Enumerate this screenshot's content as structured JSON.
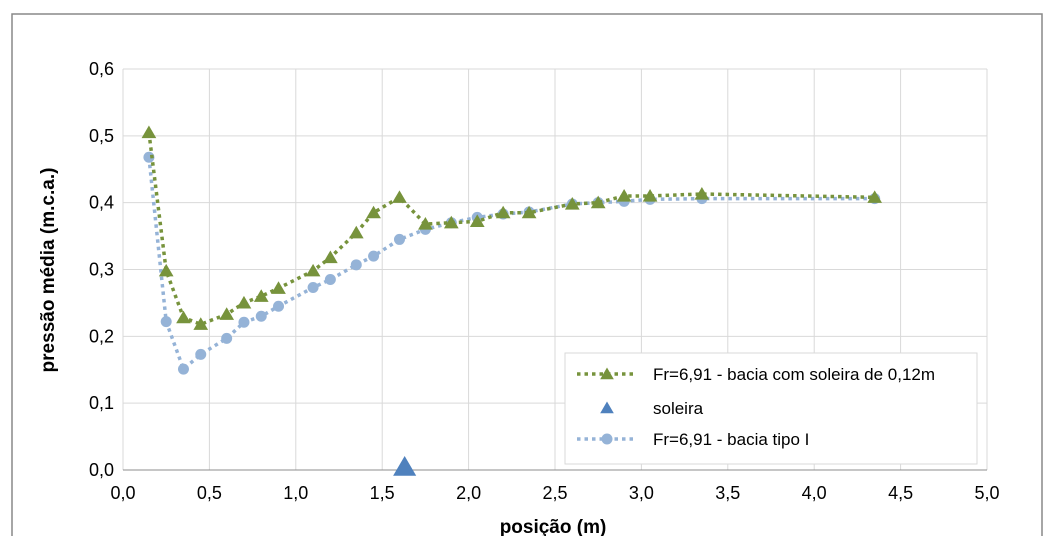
{
  "chart_data": {
    "type": "scatter",
    "title": "",
    "xlabel": "posição (m)",
    "ylabel": "pressão média (m.c.a.)",
    "xlim": [
      0,
      5
    ],
    "ylim": [
      0,
      0.6
    ],
    "x_ticks": [
      "0,0",
      "0,5",
      "1,0",
      "1,5",
      "2,0",
      "2,5",
      "3,0",
      "3,5",
      "4,0",
      "4,5",
      "5,0"
    ],
    "y_ticks": [
      "0,0",
      "0,1",
      "0,2",
      "0,3",
      "0,4",
      "0,5",
      "0,6"
    ],
    "grid": true,
    "legend_position": "bottom-right",
    "series": [
      {
        "name": "Fr=6,91 - bacia com soleira de 0,12m",
        "color": "#77933c",
        "marker": "triangle",
        "line": "dotted",
        "x": [
          0.15,
          0.25,
          0.35,
          0.45,
          0.6,
          0.7,
          0.8,
          0.9,
          1.1,
          1.2,
          1.35,
          1.45,
          1.6,
          1.75,
          1.9,
          2.05,
          2.2,
          2.35,
          2.6,
          2.75,
          2.9,
          3.05,
          3.35,
          4.35
        ],
        "y": [
          0.505,
          0.298,
          0.228,
          0.218,
          0.233,
          0.25,
          0.26,
          0.272,
          0.298,
          0.318,
          0.355,
          0.385,
          0.408,
          0.368,
          0.37,
          0.372,
          0.385,
          0.385,
          0.398,
          0.4,
          0.41,
          0.41,
          0.413,
          0.408
        ]
      },
      {
        "name": "soleira",
        "color": "#4f81bd",
        "marker": "triangle-large",
        "line": "none",
        "x": [
          1.63
        ],
        "y": [
          0.0
        ]
      },
      {
        "name": "Fr=6,91 - bacia tipo I",
        "color": "#95b3d7",
        "marker": "circle",
        "line": "dotted",
        "x": [
          0.15,
          0.25,
          0.35,
          0.45,
          0.6,
          0.7,
          0.8,
          0.9,
          1.1,
          1.2,
          1.35,
          1.45,
          1.6,
          1.75,
          1.9,
          2.05,
          2.2,
          2.35,
          2.6,
          2.75,
          2.9,
          3.05,
          3.35,
          4.35
        ],
        "y": [
          0.468,
          0.222,
          0.151,
          0.173,
          0.197,
          0.221,
          0.23,
          0.245,
          0.273,
          0.285,
          0.307,
          0.32,
          0.345,
          0.36,
          0.37,
          0.378,
          0.383,
          0.386,
          0.398,
          0.4,
          0.402,
          0.405,
          0.406,
          0.406
        ]
      }
    ]
  }
}
